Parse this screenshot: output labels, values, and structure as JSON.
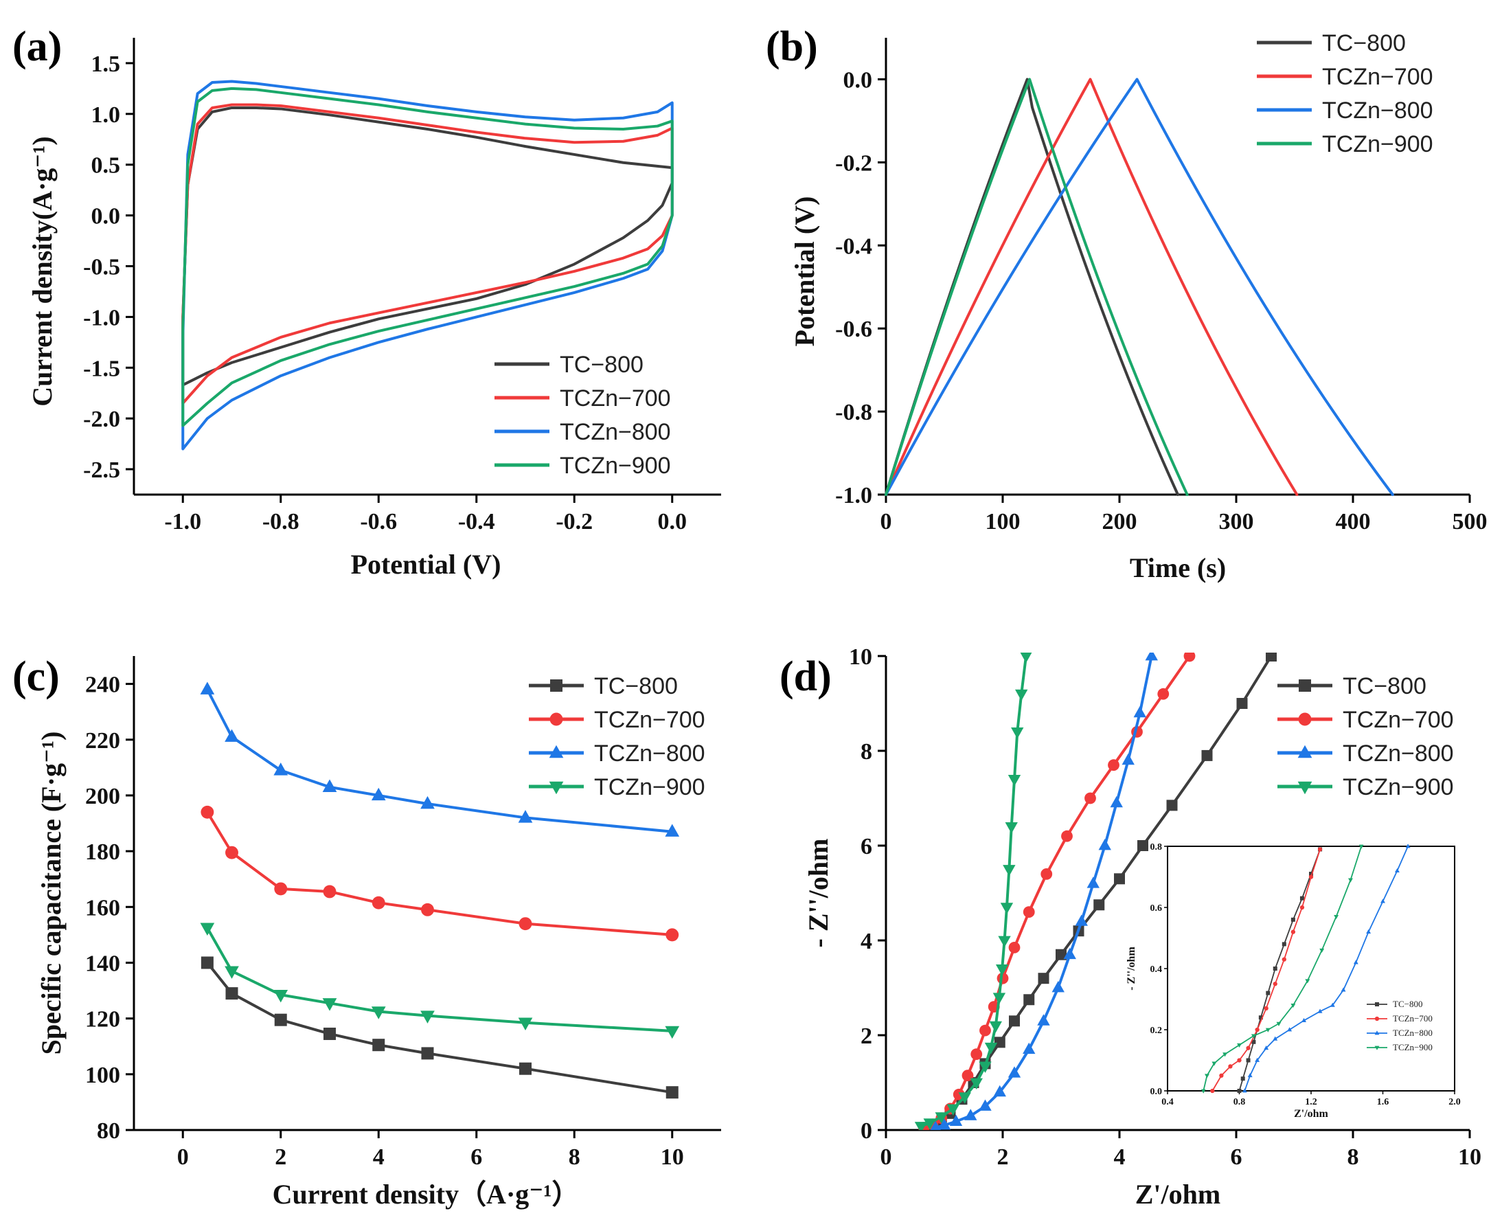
{
  "colors": {
    "TC-800": "#3d3d3d",
    "TCZn-700": "#f03a3a",
    "TCZn-800": "#1f77e6",
    "TCZn-900": "#1aa86a"
  },
  "chart_data": [
    {
      "id": "a",
      "type": "line",
      "panel_label": "(a)",
      "xlabel": "Potential (V)",
      "ylabel": "Current density(A·g⁻¹)",
      "xlim": [
        -1.1,
        0.1
      ],
      "ylim": [
        -2.75,
        1.75
      ],
      "xticks": [
        -1.0,
        -0.8,
        -0.6,
        -0.4,
        -0.2,
        0.0
      ],
      "xtick_labels": [
        "-1.0",
        "-0.8",
        "-0.6",
        "-0.4",
        "-0.2",
        "0.0"
      ],
      "yticks": [
        -2.5,
        -2.0,
        -1.5,
        -1.0,
        -0.5,
        0.0,
        0.5,
        1.0,
        1.5
      ],
      "ytick_labels": [
        "-2.5",
        "-2.0",
        "-1.5",
        "-1.0",
        "-0.5",
        "0.0",
        "0.5",
        "1.0",
        "1.5"
      ],
      "legend_position": "bottom-right",
      "legend": [
        "TC−800",
        "TCZn−700",
        "TCZn−800",
        "TCZn−900"
      ],
      "series": [
        {
          "name": "TC-800",
          "x": [
            -1.0,
            -0.99,
            -0.97,
            -0.94,
            -0.9,
            -0.85,
            -0.8,
            -0.7,
            -0.6,
            -0.5,
            -0.4,
            -0.3,
            -0.2,
            -0.1,
            0.0,
            0.0,
            -0.02,
            -0.05,
            -0.1,
            -0.2,
            -0.3,
            -0.4,
            -0.5,
            -0.6,
            -0.7,
            -0.8,
            -0.9,
            -0.95,
            -1.0,
            -1.0
          ],
          "y": [
            -1.0,
            0.3,
            0.85,
            1.02,
            1.06,
            1.06,
            1.05,
            0.99,
            0.92,
            0.85,
            0.77,
            0.68,
            0.6,
            0.52,
            0.47,
            0.32,
            0.1,
            -0.05,
            -0.22,
            -0.48,
            -0.68,
            -0.82,
            -0.92,
            -1.02,
            -1.15,
            -1.3,
            -1.45,
            -1.55,
            -1.67,
            -1.0
          ]
        },
        {
          "name": "TCZn-700",
          "x": [
            -1.0,
            -0.99,
            -0.97,
            -0.94,
            -0.9,
            -0.85,
            -0.8,
            -0.7,
            -0.6,
            -0.5,
            -0.4,
            -0.3,
            -0.2,
            -0.1,
            -0.03,
            0.0,
            0.0,
            -0.02,
            -0.05,
            -0.1,
            -0.2,
            -0.3,
            -0.4,
            -0.5,
            -0.6,
            -0.7,
            -0.8,
            -0.9,
            -0.95,
            -1.0,
            -1.0
          ],
          "y": [
            -1.0,
            0.3,
            0.9,
            1.06,
            1.09,
            1.09,
            1.08,
            1.02,
            0.96,
            0.89,
            0.82,
            0.76,
            0.72,
            0.73,
            0.79,
            0.86,
            0.0,
            -0.2,
            -0.33,
            -0.42,
            -0.55,
            -0.66,
            -0.76,
            -0.86,
            -0.96,
            -1.06,
            -1.2,
            -1.4,
            -1.58,
            -1.85,
            -1.0
          ]
        },
        {
          "name": "TCZn-800",
          "x": [
            -1.0,
            -0.99,
            -0.97,
            -0.94,
            -0.9,
            -0.85,
            -0.8,
            -0.7,
            -0.6,
            -0.5,
            -0.4,
            -0.3,
            -0.2,
            -0.1,
            -0.03,
            0.0,
            0.0,
            -0.02,
            -0.05,
            -0.1,
            -0.2,
            -0.3,
            -0.4,
            -0.5,
            -0.6,
            -0.7,
            -0.8,
            -0.9,
            -0.95,
            -1.0,
            -1.0
          ],
          "y": [
            -1.2,
            0.6,
            1.2,
            1.31,
            1.32,
            1.3,
            1.27,
            1.21,
            1.15,
            1.08,
            1.02,
            0.97,
            0.94,
            0.96,
            1.02,
            1.11,
            0.0,
            -0.35,
            -0.53,
            -0.62,
            -0.76,
            -0.88,
            -1.0,
            -1.12,
            -1.25,
            -1.4,
            -1.58,
            -1.82,
            -2.0,
            -2.3,
            -1.2
          ]
        },
        {
          "name": "TCZn-900",
          "x": [
            -1.0,
            -0.99,
            -0.97,
            -0.94,
            -0.9,
            -0.85,
            -0.8,
            -0.7,
            -0.6,
            -0.5,
            -0.4,
            -0.3,
            -0.2,
            -0.1,
            -0.03,
            0.0,
            0.0,
            -0.02,
            -0.05,
            -0.1,
            -0.2,
            -0.3,
            -0.4,
            -0.5,
            -0.6,
            -0.7,
            -0.8,
            -0.9,
            -0.95,
            -1.0,
            -1.0
          ],
          "y": [
            -1.1,
            0.5,
            1.12,
            1.23,
            1.25,
            1.24,
            1.21,
            1.15,
            1.09,
            1.02,
            0.96,
            0.9,
            0.86,
            0.85,
            0.88,
            0.93,
            0.0,
            -0.3,
            -0.48,
            -0.57,
            -0.7,
            -0.81,
            -0.92,
            -1.03,
            -1.14,
            -1.27,
            -1.43,
            -1.65,
            -1.85,
            -2.07,
            -1.1
          ]
        }
      ]
    },
    {
      "id": "b",
      "type": "line",
      "panel_label": "(b)",
      "xlabel": "Time (s)",
      "ylabel": "Potential (V)",
      "xlim": [
        0,
        500
      ],
      "ylim": [
        -1.0,
        0.1
      ],
      "xticks": [
        0,
        100,
        200,
        300,
        400,
        500
      ],
      "xtick_labels": [
        "0",
        "100",
        "200",
        "300",
        "400",
        "500"
      ],
      "yticks": [
        -1.0,
        -0.8,
        -0.6,
        -0.4,
        -0.2,
        0.0
      ],
      "ytick_labels": [
        "-1.0",
        "-0.8",
        "-0.6",
        "-0.4",
        "-0.2",
        "0.0"
      ],
      "legend_position": "top-right",
      "legend": [
        "TC−800",
        "TCZn−700",
        "TCZn−800",
        "TCZn−900"
      ],
      "series": [
        {
          "name": "TC-800",
          "peak": 121,
          "end": 250,
          "drop": 0.03
        },
        {
          "name": "TCZn-700",
          "peak": 175,
          "end": 352,
          "drop": 0.0
        },
        {
          "name": "TCZn-800",
          "peak": 215,
          "end": 434,
          "drop": 0.0
        },
        {
          "name": "TCZn-900",
          "peak": 123,
          "end": 258,
          "drop": 0.0
        }
      ]
    },
    {
      "id": "c",
      "type": "line",
      "panel_label": "(c)",
      "xlabel": "Current density（A·g⁻¹）",
      "ylabel": "Specific capacitance (F·g⁻¹)",
      "xlim": [
        -1,
        11
      ],
      "ylim": [
        80,
        250
      ],
      "xticks": [
        0,
        2,
        4,
        6,
        8,
        10
      ],
      "xtick_labels": [
        "0",
        "2",
        "4",
        "6",
        "8",
        "10"
      ],
      "yticks": [
        80,
        100,
        120,
        140,
        160,
        180,
        200,
        220,
        240
      ],
      "ytick_labels": [
        "80",
        "100",
        "120",
        "140",
        "160",
        "180",
        "200",
        "220",
        "240"
      ],
      "legend_position": "top-right",
      "legend": [
        "TC−800",
        "TCZn−700",
        "TCZn−800",
        "TCZn−900"
      ],
      "categories": [
        0.5,
        1,
        2,
        3,
        4,
        5,
        7,
        10
      ],
      "series": [
        {
          "name": "TC-800",
          "marker": "square",
          "values": [
            140,
            129,
            119.5,
            114.5,
            110.5,
            107.5,
            102,
            93.5
          ]
        },
        {
          "name": "TCZn-700",
          "marker": "circle",
          "values": [
            194,
            179.5,
            166.5,
            165.5,
            161.5,
            159,
            154,
            150
          ]
        },
        {
          "name": "TCZn-800",
          "marker": "triangle-up",
          "values": [
            238,
            221,
            209,
            203,
            200,
            197,
            192,
            187
          ]
        },
        {
          "name": "TCZn-900",
          "marker": "triangle-down",
          "values": [
            152.5,
            137,
            128.5,
            125.5,
            122.5,
            121,
            118.5,
            115.5
          ]
        }
      ]
    },
    {
      "id": "d",
      "type": "scatter",
      "panel_label": "(d)",
      "xlabel": "Z'/ohm",
      "ylabel": "- Z''/ohm",
      "xlim": [
        0,
        10
      ],
      "ylim": [
        0,
        10
      ],
      "xticks": [
        0,
        2,
        4,
        6,
        8,
        10
      ],
      "xtick_labels": [
        "0",
        "2",
        "4",
        "6",
        "8",
        "10"
      ],
      "yticks": [
        0,
        2,
        4,
        6,
        8,
        10
      ],
      "ytick_labels": [
        "0",
        "2",
        "4",
        "6",
        "8",
        "10"
      ],
      "legend_position": "top-right",
      "legend": [
        "TC−800",
        "TCZn−700",
        "TCZn−800",
        "TCZn−900"
      ],
      "series": [
        {
          "name": "TC-800",
          "marker": "square",
          "x": [
            0.8,
            0.95,
            1.1,
            1.3,
            1.5,
            1.7,
            1.95,
            2.2,
            2.45,
            2.7,
            3.0,
            3.3,
            3.65,
            4.0,
            4.4,
            4.9,
            5.5,
            6.1,
            6.6
          ],
          "y": [
            0.05,
            0.15,
            0.35,
            0.65,
            1.0,
            1.4,
            1.85,
            2.3,
            2.75,
            3.2,
            3.7,
            4.2,
            4.75,
            5.3,
            6.0,
            6.85,
            7.9,
            9.0,
            10.0
          ]
        },
        {
          "name": "TCZn-700",
          "marker": "circle",
          "x": [
            0.65,
            0.8,
            0.95,
            1.1,
            1.25,
            1.4,
            1.55,
            1.7,
            1.85,
            2.0,
            2.2,
            2.45,
            2.75,
            3.1,
            3.5,
            3.9,
            4.3,
            4.75,
            5.2
          ],
          "y": [
            0.05,
            0.12,
            0.25,
            0.45,
            0.75,
            1.15,
            1.6,
            2.1,
            2.6,
            3.2,
            3.85,
            4.6,
            5.4,
            6.2,
            7.0,
            7.7,
            8.4,
            9.2,
            10.0
          ]
        },
        {
          "name": "TCZn-800",
          "marker": "triangle-up",
          "x": [
            0.85,
            1.0,
            1.2,
            1.45,
            1.7,
            1.95,
            2.2,
            2.45,
            2.7,
            2.95,
            3.15,
            3.35,
            3.55,
            3.75,
            3.95,
            4.15,
            4.35,
            4.55
          ],
          "y": [
            0.05,
            0.1,
            0.18,
            0.3,
            0.5,
            0.8,
            1.2,
            1.7,
            2.3,
            3.0,
            3.7,
            4.4,
            5.2,
            6.0,
            6.9,
            7.8,
            8.8,
            10.0
          ]
        },
        {
          "name": "TCZn-900",
          "marker": "triangle-down",
          "x": [
            0.6,
            0.75,
            0.95,
            1.15,
            1.35,
            1.55,
            1.7,
            1.8,
            1.88,
            1.94,
            1.99,
            2.03,
            2.07,
            2.11,
            2.15,
            2.2,
            2.25,
            2.32,
            2.4
          ],
          "y": [
            0.08,
            0.15,
            0.28,
            0.45,
            0.7,
            1.0,
            1.35,
            1.75,
            2.2,
            2.8,
            3.4,
            4.0,
            4.7,
            5.5,
            6.4,
            7.4,
            8.4,
            9.2,
            10.0
          ]
        }
      ]
    }
  ],
  "inset": {
    "xlabel": "Z'/ohm",
    "ylabel": "- Z''/ohm",
    "xlim": [
      0.4,
      2.0
    ],
    "ylim": [
      0.0,
      0.8
    ],
    "xticks": [
      0.4,
      0.8,
      1.2,
      1.6,
      2.0
    ],
    "xtick_labels": [
      "0.4",
      "0.8",
      "1.2",
      "1.6",
      "2.0"
    ],
    "yticks": [
      0.0,
      0.2,
      0.4,
      0.6,
      0.8
    ],
    "ytick_labels": [
      "0.0",
      "0.2",
      "0.4",
      "0.6",
      "0.8"
    ],
    "legend": [
      "TC−800",
      "TCZn−700",
      "TCZn−800",
      "TCZn−900"
    ],
    "series": [
      {
        "name": "TC-800",
        "x": [
          0.8,
          0.82,
          0.85,
          0.88,
          0.92,
          0.96,
          1.0,
          1.05,
          1.1,
          1.15,
          1.2,
          1.25
        ],
        "y": [
          0.0,
          0.04,
          0.1,
          0.16,
          0.24,
          0.32,
          0.4,
          0.48,
          0.56,
          0.63,
          0.71,
          0.79
        ]
      },
      {
        "name": "TCZn-700",
        "x": [
          0.65,
          0.7,
          0.75,
          0.8,
          0.85,
          0.9,
          0.95,
          1.0,
          1.05,
          1.1,
          1.15,
          1.2,
          1.25
        ],
        "y": [
          0.0,
          0.05,
          0.08,
          0.1,
          0.14,
          0.2,
          0.27,
          0.35,
          0.43,
          0.52,
          0.6,
          0.7,
          0.79
        ]
      },
      {
        "name": "TCZn-800",
        "x": [
          0.83,
          0.86,
          0.9,
          0.95,
          1.0,
          1.08,
          1.16,
          1.25,
          1.32,
          1.38,
          1.45,
          1.52,
          1.6,
          1.68,
          1.74
        ],
        "y": [
          0.0,
          0.05,
          0.1,
          0.14,
          0.17,
          0.2,
          0.23,
          0.26,
          0.28,
          0.33,
          0.42,
          0.52,
          0.62,
          0.72,
          0.8
        ]
      },
      {
        "name": "TCZn-900",
        "x": [
          0.6,
          0.62,
          0.66,
          0.72,
          0.8,
          0.88,
          0.96,
          1.02,
          1.1,
          1.18,
          1.26,
          1.34,
          1.42,
          1.48
        ],
        "y": [
          0.0,
          0.05,
          0.09,
          0.12,
          0.15,
          0.18,
          0.2,
          0.22,
          0.28,
          0.36,
          0.46,
          0.57,
          0.69,
          0.8
        ]
      }
    ]
  }
}
